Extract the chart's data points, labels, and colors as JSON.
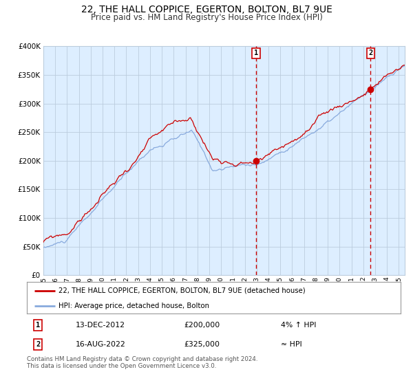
{
  "title": "22, THE HALL COPPICE, EGERTON, BOLTON, BL7 9UE",
  "subtitle": "Price paid vs. HM Land Registry's House Price Index (HPI)",
  "legend_line1": "22, THE HALL COPPICE, EGERTON, BOLTON, BL7 9UE (detached house)",
  "legend_line2": "HPI: Average price, detached house, Bolton",
  "annotation1_date": "13-DEC-2012",
  "annotation1_price": "£200,000",
  "annotation1_hpi": "4% ↑ HPI",
  "annotation2_date": "16-AUG-2022",
  "annotation2_price": "£325,000",
  "annotation2_hpi": "≈ HPI",
  "footer": "Contains HM Land Registry data © Crown copyright and database right 2024.\nThis data is licensed under the Open Government Licence v3.0.",
  "xmin": 1995.0,
  "xmax": 2025.5,
  "ymin": 0,
  "ymax": 400000,
  "marker1_x": 2012.96,
  "marker1_y": 200000,
  "marker2_x": 2022.62,
  "marker2_y": 325000,
  "vline1_x": 2012.96,
  "vline2_x": 2022.62,
  "line_color_red": "#cc0000",
  "line_color_blue": "#88aadd",
  "shade_color": "#ddeeff",
  "vline_color": "#cc0000",
  "grid_color": "#bbccdd",
  "title_fontsize": 10,
  "subtitle_fontsize": 8.5,
  "yticks": [
    0,
    50000,
    100000,
    150000,
    200000,
    250000,
    300000,
    350000,
    400000
  ],
  "ytick_labels": [
    "£0",
    "£50K",
    "£100K",
    "£150K",
    "£200K",
    "£250K",
    "£300K",
    "£350K",
    "£400K"
  ],
  "xtick_years": [
    1995,
    1996,
    1997,
    1998,
    1999,
    2000,
    2001,
    2002,
    2003,
    2004,
    2005,
    2006,
    2007,
    2008,
    2009,
    2010,
    2011,
    2012,
    2013,
    2014,
    2015,
    2016,
    2017,
    2018,
    2019,
    2020,
    2021,
    2022,
    2023,
    2024,
    2025
  ]
}
